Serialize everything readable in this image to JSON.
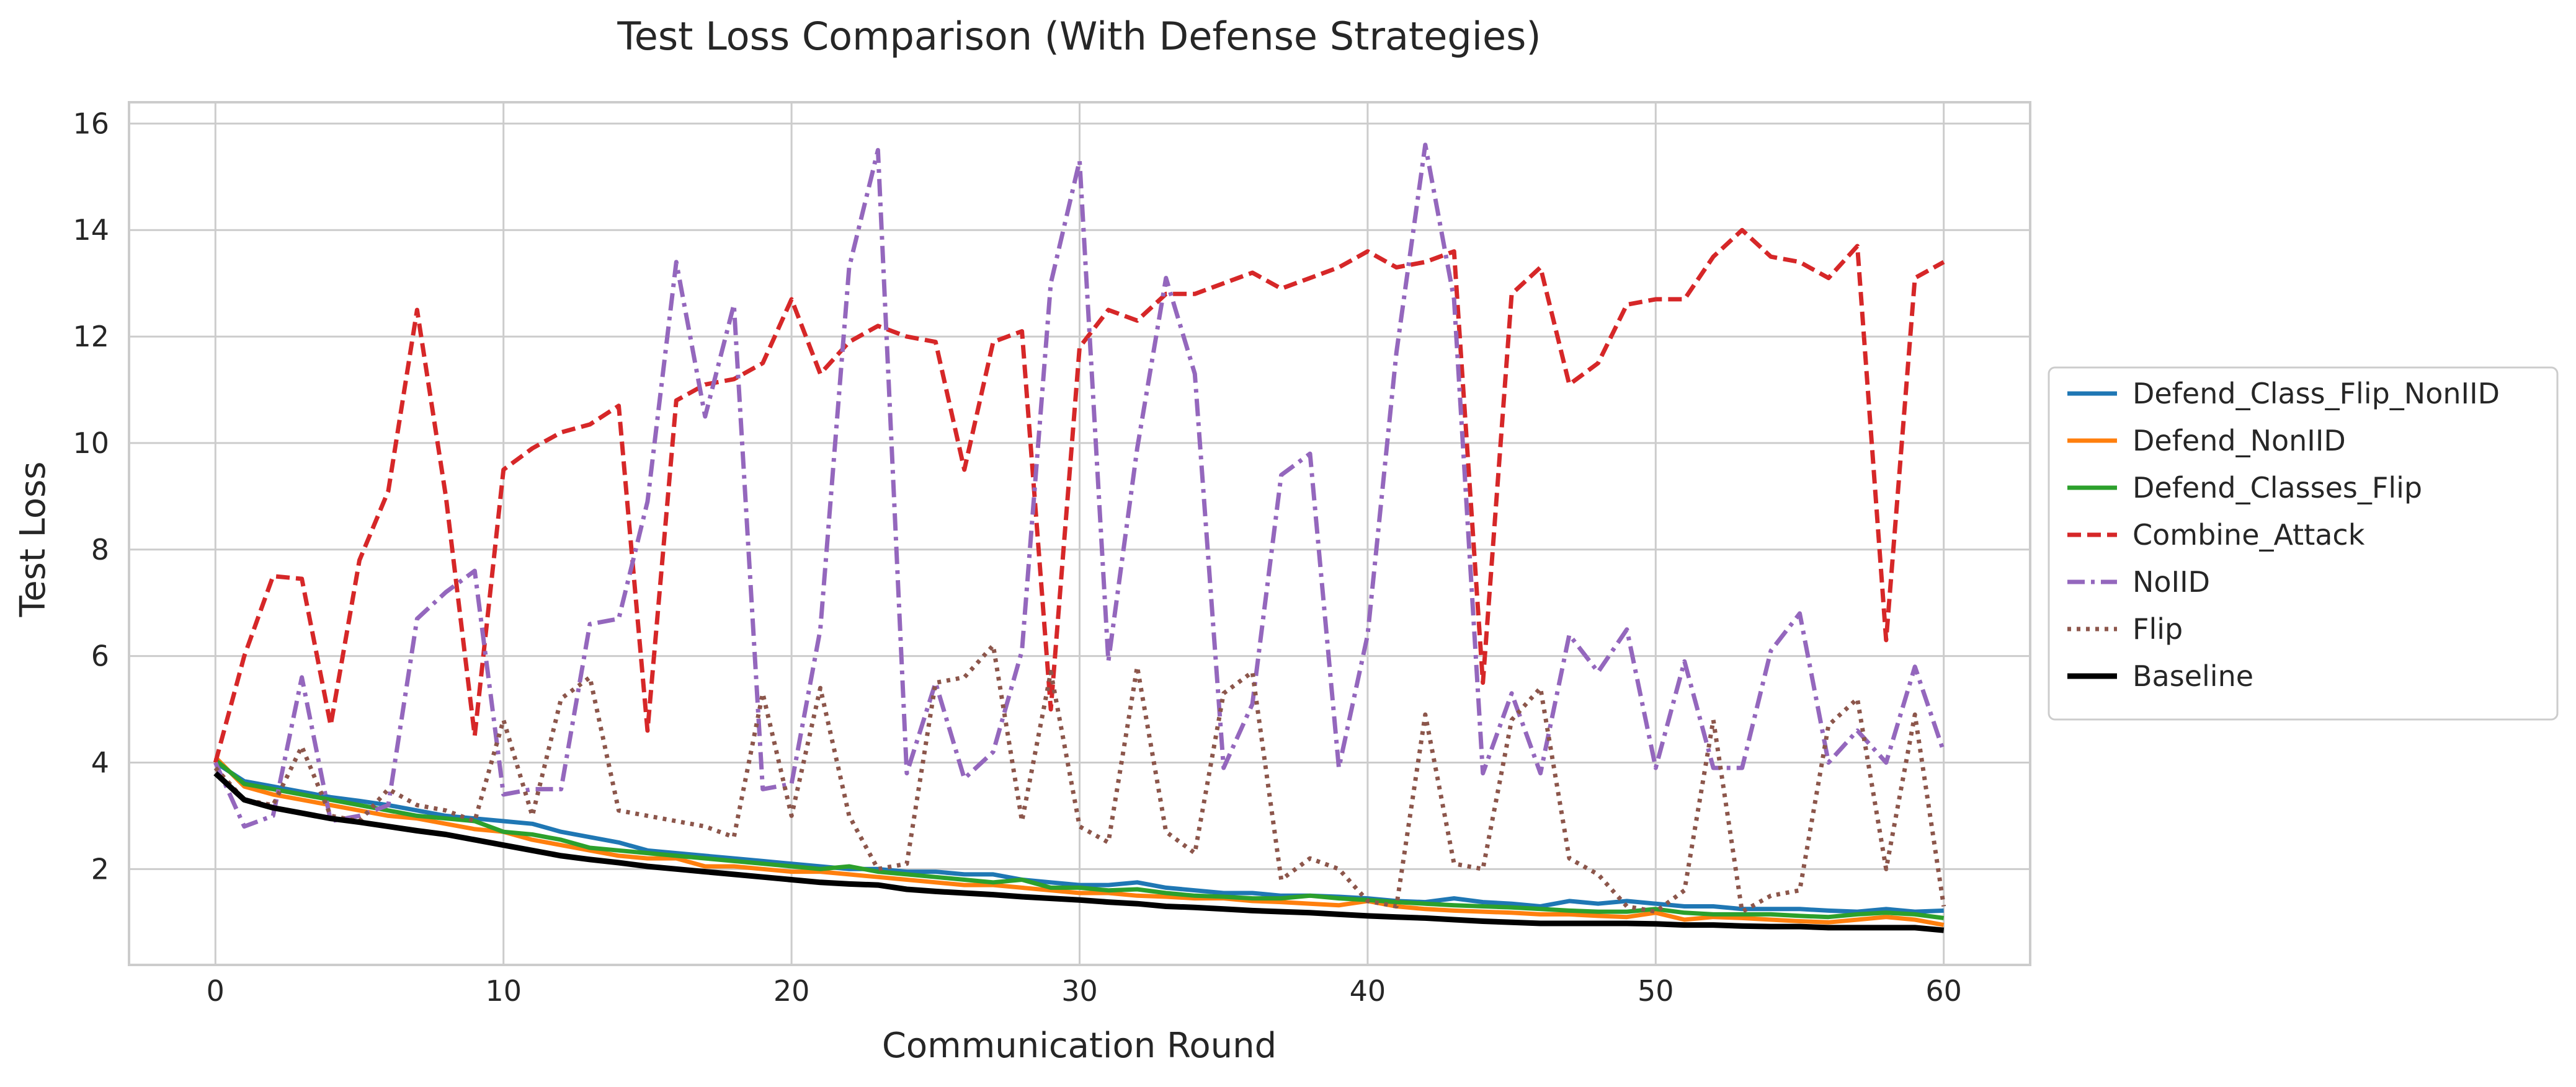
{
  "chart_data": {
    "type": "line",
    "title": "Test Loss Comparison (With Defense Strategies)",
    "xlabel": "Communication Round",
    "ylabel": "Test Loss",
    "xlim": [
      -3,
      63
    ],
    "ylim": [
      0.2,
      16.4
    ],
    "xticks": [
      0,
      10,
      20,
      30,
      40,
      50,
      60
    ],
    "yticks": [
      2,
      4,
      6,
      8,
      10,
      12,
      14,
      16
    ],
    "grid": true,
    "legend_position": "center-right-outside",
    "x": [
      0,
      1,
      2,
      3,
      4,
      5,
      6,
      7,
      8,
      9,
      10,
      11,
      12,
      13,
      14,
      15,
      16,
      17,
      18,
      19,
      20,
      21,
      22,
      23,
      24,
      25,
      26,
      27,
      28,
      29,
      30,
      31,
      32,
      33,
      34,
      35,
      36,
      37,
      38,
      39,
      40,
      41,
      42,
      43,
      44,
      45,
      46,
      47,
      48,
      49,
      50,
      51,
      52,
      53,
      54,
      55,
      56,
      57,
      58,
      59,
      60
    ],
    "series": [
      {
        "name": "Defend_Class_Flip_NonIID",
        "color": "#1f77b4",
        "style": "solid",
        "values": [
          4.0,
          3.65,
          3.55,
          3.45,
          3.35,
          3.28,
          3.2,
          3.1,
          3.0,
          2.95,
          2.9,
          2.85,
          2.7,
          2.6,
          2.5,
          2.35,
          2.3,
          2.25,
          2.2,
          2.15,
          2.1,
          2.05,
          2.0,
          2.0,
          1.95,
          1.95,
          1.9,
          1.9,
          1.8,
          1.75,
          1.7,
          1.7,
          1.75,
          1.65,
          1.6,
          1.55,
          1.55,
          1.5,
          1.5,
          1.48,
          1.45,
          1.4,
          1.38,
          1.45,
          1.38,
          1.35,
          1.3,
          1.4,
          1.35,
          1.4,
          1.35,
          1.3,
          1.3,
          1.25,
          1.25,
          1.25,
          1.22,
          1.2,
          1.25,
          1.2,
          1.22
        ]
      },
      {
        "name": "Defend_NonIID",
        "color": "#ff7f0e",
        "style": "solid",
        "values": [
          4.1,
          3.55,
          3.4,
          3.3,
          3.2,
          3.1,
          3.0,
          2.95,
          2.85,
          2.75,
          2.7,
          2.55,
          2.45,
          2.35,
          2.25,
          2.2,
          2.2,
          2.05,
          2.05,
          2.0,
          1.95,
          1.95,
          1.9,
          1.85,
          1.8,
          1.75,
          1.7,
          1.7,
          1.65,
          1.6,
          1.55,
          1.55,
          1.5,
          1.48,
          1.45,
          1.45,
          1.4,
          1.38,
          1.35,
          1.32,
          1.4,
          1.3,
          1.25,
          1.22,
          1.2,
          1.18,
          1.15,
          1.15,
          1.12,
          1.1,
          1.18,
          1.05,
          1.1,
          1.08,
          1.05,
          1.02,
          1.0,
          1.05,
          1.1,
          1.05,
          0.95
        ]
      },
      {
        "name": "Defend_Classes_Flip",
        "color": "#2ca02c",
        "style": "solid",
        "values": [
          4.05,
          3.6,
          3.5,
          3.4,
          3.3,
          3.2,
          3.1,
          3.0,
          2.95,
          2.9,
          2.7,
          2.65,
          2.55,
          2.4,
          2.35,
          2.3,
          2.25,
          2.2,
          2.15,
          2.1,
          2.05,
          2.0,
          2.05,
          1.95,
          1.9,
          1.85,
          1.8,
          1.75,
          1.8,
          1.65,
          1.65,
          1.6,
          1.62,
          1.55,
          1.5,
          1.48,
          1.45,
          1.45,
          1.5,
          1.45,
          1.42,
          1.38,
          1.35,
          1.32,
          1.3,
          1.28,
          1.25,
          1.22,
          1.2,
          1.2,
          1.25,
          1.18,
          1.15,
          1.15,
          1.15,
          1.12,
          1.1,
          1.15,
          1.18,
          1.15,
          1.08
        ]
      },
      {
        "name": "Combine_Attack",
        "color": "#d62728",
        "style": "dashed",
        "values": [
          4.0,
          6.0,
          7.5,
          7.45,
          4.7,
          7.8,
          9.1,
          12.5,
          9.0,
          4.5,
          9.5,
          9.9,
          10.2,
          10.35,
          10.7,
          4.6,
          10.8,
          11.1,
          11.2,
          11.5,
          12.7,
          11.3,
          11.9,
          12.2,
          12.0,
          11.9,
          9.5,
          11.9,
          12.1,
          5.0,
          11.8,
          12.5,
          12.3,
          12.8,
          12.8,
          13.0,
          13.2,
          12.9,
          13.1,
          13.3,
          13.6,
          13.3,
          13.4,
          13.6,
          5.5,
          12.8,
          13.3,
          11.1,
          11.5,
          12.6,
          12.7,
          12.7,
          13.5,
          14.0,
          13.5,
          13.4,
          13.1,
          13.7,
          6.3,
          13.1,
          13.4
        ]
      },
      {
        "name": "NoIID",
        "color": "#9467bd",
        "style": "dashdot",
        "values": [
          4.0,
          2.8,
          3.0,
          5.6,
          2.9,
          3.0,
          3.2,
          6.7,
          7.2,
          7.6,
          3.4,
          3.5,
          3.5,
          6.6,
          6.7,
          8.9,
          13.4,
          10.5,
          12.6,
          3.5,
          3.6,
          6.5,
          13.3,
          15.5,
          3.8,
          5.5,
          3.7,
          4.2,
          6.1,
          13.0,
          15.3,
          5.9,
          9.9,
          13.1,
          11.3,
          3.9,
          5.1,
          9.4,
          9.8,
          3.9,
          6.4,
          11.7,
          15.6,
          12.7,
          3.8,
          5.3,
          3.8,
          6.4,
          5.7,
          6.5,
          3.9,
          5.9,
          3.9,
          3.9,
          6.1,
          6.8,
          4.0,
          4.6,
          4.0,
          5.8,
          4.2
        ]
      },
      {
        "name": "Flip",
        "color": "#8c564b",
        "style": "dotted",
        "values": [
          3.9,
          3.3,
          3.2,
          4.3,
          3.0,
          2.9,
          3.5,
          3.2,
          3.1,
          2.9,
          4.8,
          3.0,
          5.2,
          5.6,
          3.1,
          3.0,
          2.9,
          2.8,
          2.6,
          5.3,
          3.0,
          5.4,
          3.0,
          2.0,
          2.1,
          5.5,
          5.6,
          6.2,
          2.9,
          5.7,
          2.8,
          2.5,
          5.8,
          2.7,
          2.3,
          5.3,
          5.7,
          1.8,
          2.2,
          2.0,
          1.4,
          1.3,
          4.9,
          2.1,
          2.0,
          4.8,
          5.4,
          2.2,
          1.9,
          1.3,
          1.2,
          1.6,
          4.8,
          1.2,
          1.5,
          1.6,
          4.7,
          5.2,
          2.0,
          4.9,
          1.3
        ]
      },
      {
        "name": "Baseline",
        "color": "#000000",
        "style": "solid",
        "values": [
          3.8,
          3.3,
          3.15,
          3.05,
          2.95,
          2.88,
          2.8,
          2.72,
          2.65,
          2.55,
          2.45,
          2.35,
          2.25,
          2.18,
          2.12,
          2.05,
          2.0,
          1.95,
          1.9,
          1.85,
          1.8,
          1.75,
          1.72,
          1.7,
          1.62,
          1.58,
          1.55,
          1.52,
          1.48,
          1.45,
          1.42,
          1.38,
          1.35,
          1.3,
          1.28,
          1.25,
          1.22,
          1.2,
          1.18,
          1.15,
          1.12,
          1.1,
          1.08,
          1.05,
          1.02,
          1.0,
          0.98,
          0.98,
          0.98,
          0.98,
          0.97,
          0.95,
          0.95,
          0.93,
          0.92,
          0.92,
          0.9,
          0.9,
          0.9,
          0.9,
          0.85
        ]
      }
    ]
  }
}
